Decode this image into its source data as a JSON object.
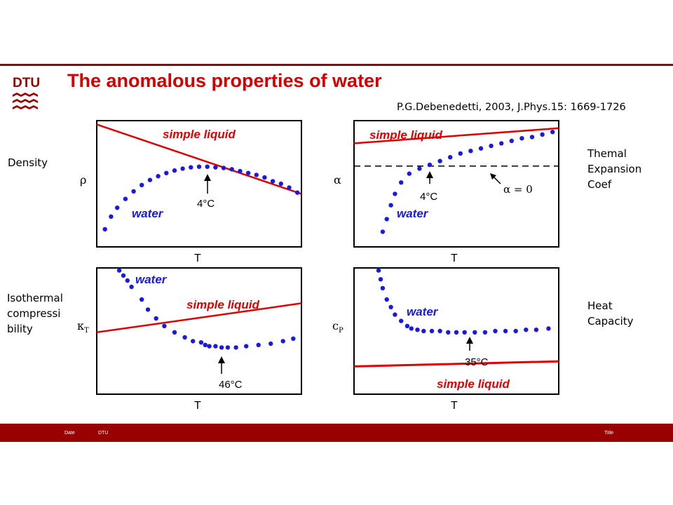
{
  "header": {
    "logo_text": "DTU",
    "title": "The anomalous properties of water",
    "citation": "P.G.Debenedetti, 2003, J.Phys.15: 1669-1726"
  },
  "property_labels": {
    "density": "Density",
    "thermal_l1": "Themal",
    "thermal_l2": "Expansion",
    "thermal_l3": "Coef",
    "iso_l1": "Isothermal",
    "iso_l2": "compressi",
    "iso_l3": "bility",
    "heat_l1": "Heat",
    "heat_l2": "Capacity"
  },
  "footer": {
    "date": "Date",
    "org": "DTU",
    "title": "Title"
  },
  "colors": {
    "brand": "#990000",
    "simple_liquid": "#e00000",
    "water": "#1a1adf"
  },
  "chart_data": [
    {
      "type": "line",
      "ylabel": "ρ",
      "xlabel": "T",
      "series": [
        {
          "name": "simple liquid",
          "x": [
            0,
            0.5,
            1
          ],
          "y": [
            0.97,
            0.7,
            0.42
          ]
        },
        {
          "name": "water",
          "x": [
            0.04,
            0.07,
            0.1,
            0.14,
            0.18,
            0.22,
            0.26,
            0.3,
            0.34,
            0.38,
            0.42,
            0.46,
            0.5,
            0.54,
            0.58,
            0.62,
            0.66,
            0.7,
            0.74,
            0.78,
            0.82,
            0.86,
            0.9,
            0.94,
            0.98
          ],
          "y": [
            0.14,
            0.24,
            0.31,
            0.38,
            0.44,
            0.49,
            0.53,
            0.56,
            0.585,
            0.605,
            0.62,
            0.63,
            0.635,
            0.635,
            0.63,
            0.625,
            0.615,
            0.6,
            0.585,
            0.57,
            0.55,
            0.52,
            0.5,
            0.47,
            0.43
          ]
        }
      ],
      "annotations": [
        {
          "text": "4°C",
          "x": 0.53
        }
      ]
    },
    {
      "type": "line",
      "ylabel": "α",
      "xlabel": "T",
      "series": [
        {
          "name": "simple liquid",
          "x": [
            0,
            0.5,
            1
          ],
          "y": [
            0.82,
            0.88,
            0.94
          ]
        },
        {
          "name": "water",
          "x": [
            0.14,
            0.16,
            0.18,
            0.2,
            0.23,
            0.27,
            0.32,
            0.37,
            0.42,
            0.47,
            0.52,
            0.57,
            0.62,
            0.67,
            0.72,
            0.77,
            0.82,
            0.87,
            0.92,
            0.97
          ],
          "y": [
            0.12,
            0.22,
            0.33,
            0.42,
            0.51,
            0.58,
            0.62,
            0.65,
            0.68,
            0.71,
            0.74,
            0.76,
            0.78,
            0.8,
            0.82,
            0.84,
            0.86,
            0.87,
            0.89,
            0.91
          ]
        },
        {
          "name": "α = 0",
          "x": [
            0,
            1
          ],
          "y": [
            0.64,
            0.64
          ]
        }
      ],
      "annotations": [
        {
          "text": "4°C",
          "x": 0.37
        },
        {
          "text": "α = 0"
        }
      ]
    },
    {
      "type": "line",
      "ylabel": "κ_T",
      "xlabel": "T",
      "series": [
        {
          "name": "simple liquid",
          "x": [
            0,
            0.5,
            1
          ],
          "y": [
            0.49,
            0.6,
            0.72
          ]
        },
        {
          "name": "water",
          "x": [
            0.11,
            0.13,
            0.15,
            0.17,
            0.22,
            0.25,
            0.29,
            0.33,
            0.38,
            0.43,
            0.47,
            0.51,
            0.53,
            0.55,
            0.58,
            0.61,
            0.64,
            0.68,
            0.73,
            0.79,
            0.85,
            0.91,
            0.96
          ],
          "y": [
            0.98,
            0.94,
            0.9,
            0.85,
            0.75,
            0.67,
            0.6,
            0.54,
            0.49,
            0.45,
            0.42,
            0.41,
            0.39,
            0.38,
            0.38,
            0.37,
            0.37,
            0.37,
            0.38,
            0.39,
            0.4,
            0.42,
            0.44
          ]
        }
      ],
      "annotations": [
        {
          "text": "46°C",
          "x": 0.61
        }
      ]
    },
    {
      "type": "line",
      "ylabel": "c_P",
      "xlabel": "T",
      "series": [
        {
          "name": "simple liquid",
          "x": [
            0,
            0.5,
            1
          ],
          "y": [
            0.22,
            0.24,
            0.26
          ]
        },
        {
          "name": "water",
          "x": [
            0.12,
            0.13,
            0.14,
            0.16,
            0.18,
            0.2,
            0.23,
            0.26,
            0.28,
            0.31,
            0.34,
            0.38,
            0.42,
            0.46,
            0.5,
            0.54,
            0.59,
            0.64,
            0.69,
            0.74,
            0.79,
            0.84,
            0.89,
            0.95
          ],
          "y": [
            0.98,
            0.91,
            0.84,
            0.75,
            0.69,
            0.63,
            0.58,
            0.54,
            0.52,
            0.51,
            0.5,
            0.5,
            0.5,
            0.49,
            0.49,
            0.49,
            0.49,
            0.49,
            0.5,
            0.5,
            0.5,
            0.51,
            0.51,
            0.52
          ]
        }
      ],
      "annotations": [
        {
          "text": "35°C",
          "x": 0.59
        }
      ]
    }
  ],
  "plot_text": {
    "p1_simple": "simple liquid",
    "p1_water": "water",
    "p1_ann": "4°C",
    "p1_y": "ρ",
    "p1_x": "T",
    "p2_simple": "simple liquid",
    "p2_water": "water",
    "p2_ann": "4°C",
    "p2_alpha0": "α = 0",
    "p2_y": "α",
    "p2_x": "T",
    "p3_simple": "simple liquid",
    "p3_water": "water",
    "p3_ann": "46°C",
    "p3_y": "κ",
    "p3_ysub": "T",
    "p3_x": "T",
    "p4_simple": "simple liquid",
    "p4_water": "water",
    "p4_ann": "35°C",
    "p4_y": "c",
    "p4_ysub": "P",
    "p4_x": "T"
  }
}
